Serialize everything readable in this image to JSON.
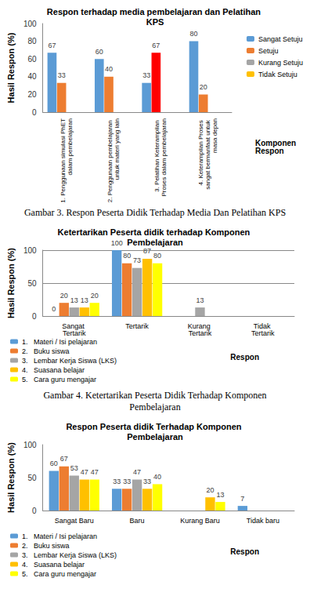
{
  "chart_data": [
    {
      "type": "bar",
      "title": "Respon terhadap media pembelajaran dan Pelatihan KPS",
      "y_label": "Hasil Respon (%)",
      "x_label": "Komponen Respon",
      "caption": "Gambar 3. Respon Peserta Didik Terhadap Media Dan Pelatihan KPS",
      "categories": [
        "1. Penggunaan simulasi PhET dalam pembelajaran",
        "2. Penggunaan pembelajaran untuk materi yang lain",
        "3. Pelatihan Keterampilan Proses dalam pembelajaran",
        "4. Keterampilan Proses sangat bermanfaat untuk masa depan"
      ],
      "series": [
        {
          "name": "Sangat Setuju",
          "color": "#5b9bd5",
          "values": [
            67,
            60,
            33,
            80
          ]
        },
        {
          "name": "Setuju",
          "color": "#ed7d31",
          "colors": [
            "#ed7d31",
            "#ed7d31",
            "#ff0000",
            "#ed7d31"
          ],
          "values": [
            33,
            40,
            67,
            20
          ]
        },
        {
          "name": "Kurang Setuju",
          "color": "#a5a5a5",
          "values": [
            null,
            null,
            null,
            null
          ]
        },
        {
          "name": "Tidak Setuju",
          "color": "#ffc000",
          "values": [
            null,
            null,
            null,
            null
          ]
        }
      ],
      "ylim": [
        0,
        100
      ],
      "yticks": [
        0,
        20,
        40,
        60,
        80,
        100
      ],
      "grid": false,
      "legend": "right",
      "data_labels": true
    },
    {
      "type": "bar",
      "title": "Ketertarikan Peserta didik terhadap Komponen Pembelajaran",
      "y_label": "Hasil Respon (%)",
      "x_label": "Respon",
      "caption": "Gambar 4. Ketertarikan Peserta Didik Terhadap Komponen Pembelajaran",
      "categories": [
        "Sangat Tertarik",
        "Tertarik",
        "Kurang Tertarik",
        "Tidak Tertarik"
      ],
      "series": [
        {
          "name": "1.   Materi / Isi pelajaran",
          "color": "#5b9bd5",
          "values": [
            0,
            100,
            null,
            null
          ]
        },
        {
          "name": "2.   Buku siswa",
          "color": "#ed7d31",
          "values": [
            20,
            80,
            null,
            null
          ]
        },
        {
          "name": "3.   Lembar Kerja Siswa (LKS)",
          "color": "#a5a5a5",
          "values": [
            13,
            73,
            13,
            null
          ]
        },
        {
          "name": "4.   Suasana belajar",
          "color": "#ffc000",
          "values": [
            13,
            87,
            null,
            null
          ]
        },
        {
          "name": "5.   Cara guru mengajar",
          "color": "#ffff00",
          "values": [
            20,
            80,
            null,
            null
          ]
        }
      ],
      "ylim": [
        0,
        100
      ],
      "yticks": [
        0,
        50,
        100
      ],
      "grid": true,
      "legend": "bottom",
      "data_labels": true
    },
    {
      "type": "bar",
      "title": "Respon Peserta didik Terhadap Komponen Pembelajaran",
      "y_label": "Hasil Respon (%)",
      "x_label": "Respon",
      "categories": [
        "Sangat Baru",
        "Baru",
        "Kurang Baru",
        "Tidak baru"
      ],
      "series": [
        {
          "name": "1.   Materi / Isi pelajaran",
          "color": "#5b9bd5",
          "values": [
            60,
            33,
            null,
            7
          ]
        },
        {
          "name": "2.   Buku siswa",
          "color": "#ed7d31",
          "values": [
            67,
            33,
            null,
            null
          ]
        },
        {
          "name": "3.   Lembar Kerja Siswa (LKS)",
          "color": "#a5a5a5",
          "values": [
            53,
            47,
            null,
            null
          ]
        },
        {
          "name": "4.   Suasana belajar",
          "color": "#ffc000",
          "values": [
            47,
            33,
            20,
            null
          ]
        },
        {
          "name": "5.   Cara guru mengajar",
          "color": "#ffff00",
          "values": [
            47,
            40,
            13,
            null
          ]
        }
      ],
      "ylim": [
        0,
        100
      ],
      "yticks": [
        0,
        50,
        100
      ],
      "grid": false,
      "legend": "bottom",
      "data_labels": true
    }
  ]
}
